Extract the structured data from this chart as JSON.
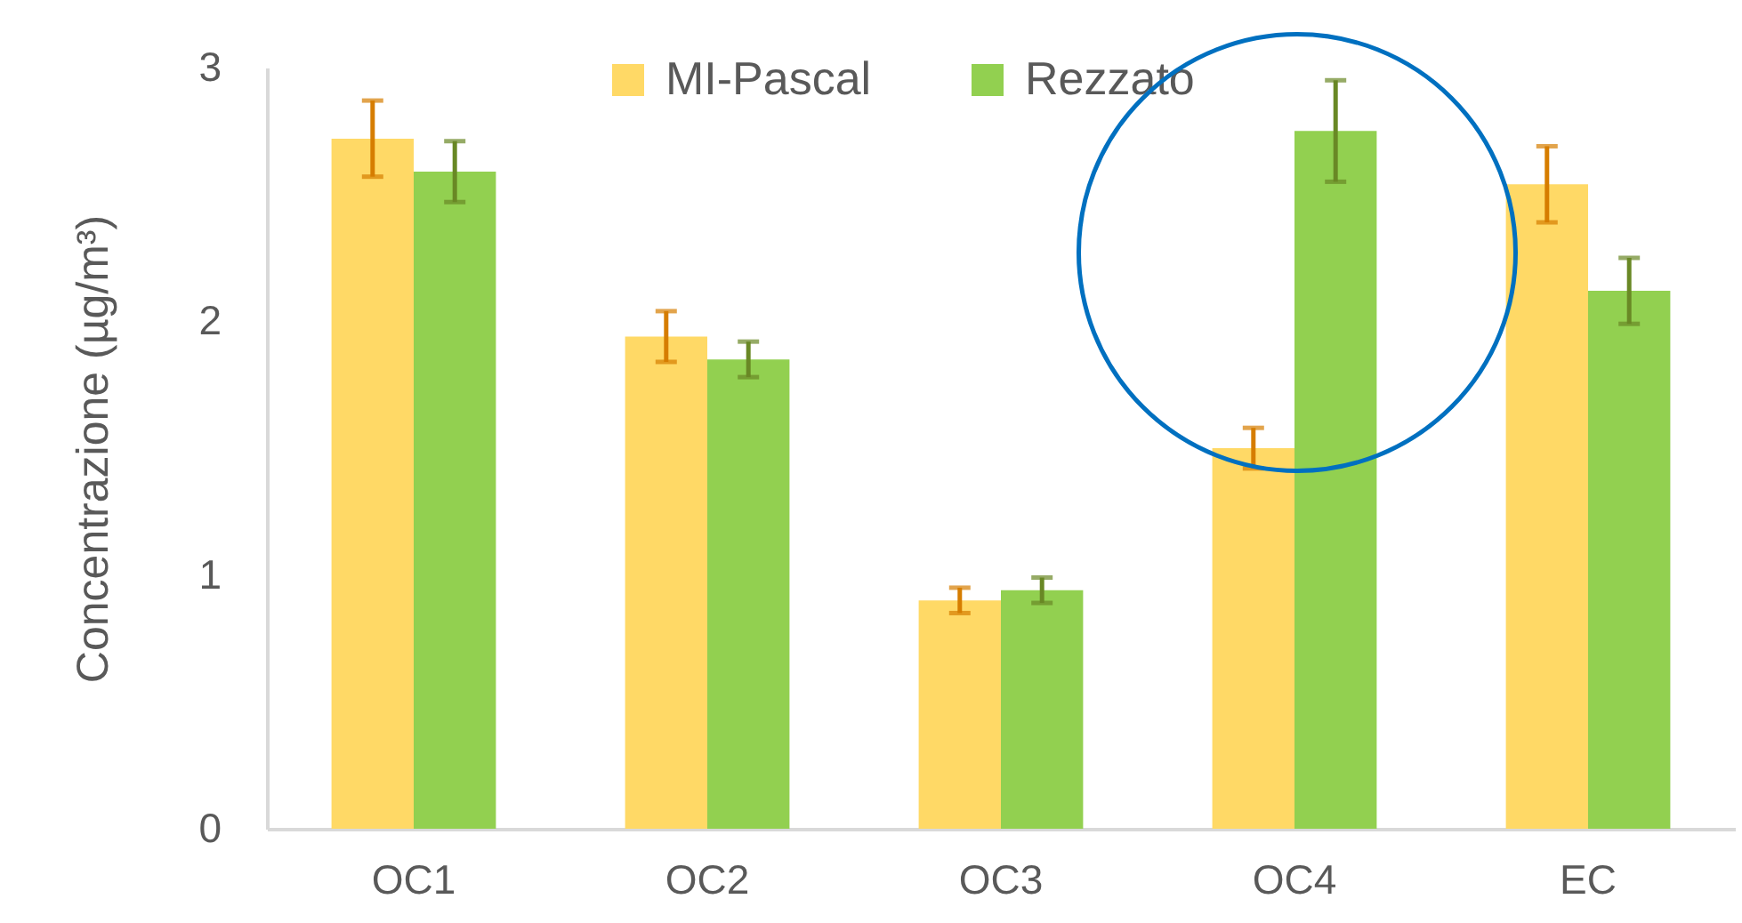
{
  "chart_data": {
    "type": "bar",
    "ylabel": "Concentrazione (µg/m³)",
    "categories": [
      "OC1",
      "OC2",
      "OC3",
      "OC4",
      "EC"
    ],
    "series": [
      {
        "name": "MI-Pascal",
        "color": "#ffd966",
        "values": [
          2.72,
          1.94,
          0.9,
          1.5,
          2.54
        ],
        "errors": [
          0.15,
          0.1,
          0.05,
          0.08,
          0.15
        ]
      },
      {
        "name": "Rezzato",
        "color": "#92d050",
        "values": [
          2.59,
          1.85,
          0.94,
          2.75,
          2.12
        ],
        "errors": [
          0.12,
          0.07,
          0.05,
          0.2,
          0.13
        ]
      }
    ],
    "ylim": [
      0,
      3
    ],
    "yticks": [
      0,
      1,
      2,
      3
    ],
    "grid": false,
    "legend": "top"
  }
}
